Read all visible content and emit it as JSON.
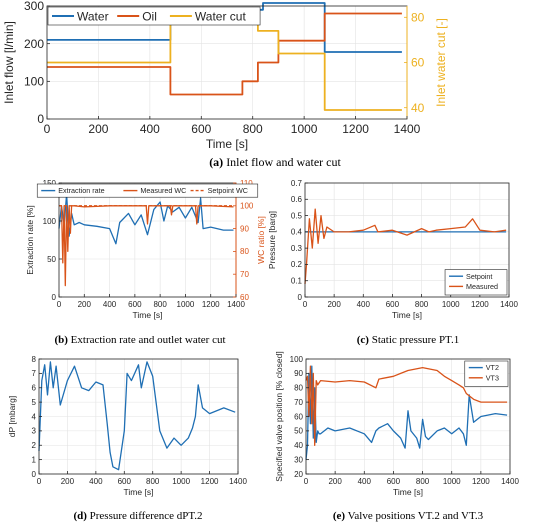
{
  "colors": {
    "blue": "#1f6fb4",
    "orange": "#d95319",
    "yellow": "#edb120"
  },
  "captions": [
    {
      "label": "(a)",
      "text": "Inlet flow and water cut"
    },
    {
      "label": "(b)",
      "text": "Extraction rate and outlet water cut"
    },
    {
      "label": "(c)",
      "text": "Static pressure PT.1"
    },
    {
      "label": "(d)",
      "text": "Pressure difference dPT.2"
    },
    {
      "label": "(e)",
      "text": "Valve positions VT.2 and VT.3"
    }
  ],
  "chart_data": [
    {
      "id": "a",
      "type": "line",
      "xlabel": "Time [s]",
      "ylabel": "Inlet flow [l/min]",
      "ylabel_right": "Inlet water cut [-]",
      "xlim": [
        0,
        1400
      ],
      "ylim": [
        0,
        300
      ],
      "ylim_right": [
        35,
        85
      ],
      "xticks": [
        0,
        200,
        400,
        600,
        800,
        1000,
        1200,
        1400
      ],
      "yticks": [
        0,
        100,
        200,
        300
      ],
      "yticks_right": [
        40,
        60,
        80
      ],
      "grid": true,
      "legend": "top-left",
      "series": [
        {
          "name": "Water",
          "color": "#1f6fb4",
          "axis": "left",
          "x": [
            0,
            480,
            480,
            840,
            840,
            1080,
            1080,
            1380
          ],
          "y": [
            210,
            210,
            290,
            290,
            308,
            308,
            178,
            178
          ]
        },
        {
          "name": "Oil",
          "color": "#d95319",
          "axis": "left",
          "x": [
            0,
            480,
            480,
            760,
            760,
            820,
            820,
            900,
            900,
            1080,
            1080,
            1380
          ],
          "y": [
            138,
            138,
            65,
            65,
            100,
            100,
            150,
            150,
            208,
            208,
            280,
            280
          ]
        },
        {
          "name": "Water cut",
          "color": "#edb120",
          "axis": "right",
          "x": [
            0,
            480,
            480,
            760,
            760,
            820,
            820,
            900,
            900,
            1080,
            1080,
            1380
          ],
          "y": [
            60,
            60,
            81,
            81,
            78,
            78,
            74,
            74,
            64,
            64,
            39,
            39
          ]
        }
      ]
    },
    {
      "id": "b",
      "type": "line",
      "xlabel": "Time [s]",
      "ylabel": "Extraction rate [%]",
      "ylabel_right": "WC ratio [%]",
      "xlim": [
        0,
        1400
      ],
      "ylim": [
        0,
        150
      ],
      "ylim_right": [
        60,
        110
      ],
      "xticks": [
        0,
        200,
        400,
        600,
        800,
        1000,
        1200,
        1400
      ],
      "yticks": [
        0,
        50,
        100,
        150
      ],
      "yticks_right": [
        60,
        70,
        80,
        90,
        100,
        110
      ],
      "grid": true,
      "legend": "top",
      "series": [
        {
          "name": "Extraction rate",
          "color": "#1f6fb4",
          "axis": "left",
          "x": [
            0,
            20,
            40,
            60,
            80,
            100,
            120,
            160,
            200,
            300,
            400,
            450,
            480,
            550,
            600,
            650,
            700,
            750,
            800,
            830,
            860,
            900,
            950,
            1000,
            1050,
            1100,
            1120,
            1140,
            1200,
            1300,
            1380
          ],
          "y": [
            90,
            120,
            95,
            135,
            80,
            110,
            95,
            98,
            95,
            93,
            90,
            70,
            98,
            110,
            95,
            108,
            82,
            115,
            125,
            100,
            120,
            112,
            118,
            104,
            118,
            98,
            130,
            90,
            92,
            88,
            88
          ]
        },
        {
          "name": "Measured WC",
          "color": "#d95319",
          "axis": "right",
          "x": [
            0,
            20,
            30,
            40,
            50,
            60,
            70,
            80,
            90,
            100,
            120,
            200,
            400,
            690,
            700,
            710,
            800,
            880,
            890,
            900,
            1000,
            1080,
            1090,
            1100,
            1200,
            1380
          ],
          "y": [
            100,
            100,
            75,
            100,
            65,
            100,
            80,
            100,
            88,
            100,
            100,
            99.5,
            100,
            100,
            92,
            100,
            100,
            100,
            96,
            100,
            100,
            100,
            92,
            100,
            100,
            99.5
          ]
        },
        {
          "name": "Setpoint WC",
          "color": "#d95319",
          "axis": "right",
          "dashed": true,
          "x": [
            0,
            1380
          ],
          "y": [
            100,
            100
          ]
        }
      ]
    },
    {
      "id": "c",
      "type": "line",
      "xlabel": "Time [s]",
      "ylabel": "Pressure [barg]",
      "xlim": [
        0,
        1400
      ],
      "ylim": [
        0,
        0.7
      ],
      "xticks": [
        0,
        200,
        400,
        600,
        800,
        1000,
        1200,
        1400
      ],
      "yticks": [
        0,
        0.1,
        0.2,
        0.3,
        0.4,
        0.5,
        0.6,
        0.7
      ],
      "grid": true,
      "legend": "bottom-right",
      "series": [
        {
          "name": "Setpoint",
          "color": "#1f6fb4",
          "x": [
            0,
            1380
          ],
          "y": [
            0.4,
            0.4
          ]
        },
        {
          "name": "Measured",
          "color": "#d95319",
          "x": [
            0,
            10,
            30,
            50,
            70,
            90,
            110,
            130,
            150,
            200,
            300,
            400,
            480,
            500,
            600,
            700,
            800,
            850,
            900,
            1000,
            1100,
            1150,
            1200,
            1300,
            1380
          ],
          "y": [
            0.08,
            0.2,
            0.48,
            0.3,
            0.54,
            0.33,
            0.5,
            0.36,
            0.43,
            0.4,
            0.4,
            0.41,
            0.44,
            0.4,
            0.41,
            0.38,
            0.42,
            0.4,
            0.41,
            0.42,
            0.43,
            0.48,
            0.41,
            0.4,
            0.41
          ]
        }
      ]
    },
    {
      "id": "d",
      "type": "line",
      "xlabel": "Time [s]",
      "ylabel": "dP [mbarg]",
      "xlim": [
        0,
        1400
      ],
      "ylim": [
        0,
        8
      ],
      "xticks": [
        0,
        200,
        400,
        600,
        800,
        1000,
        1200,
        1400
      ],
      "yticks": [
        0,
        1,
        2,
        3,
        4,
        5,
        6,
        7,
        8
      ],
      "grid": true,
      "series": [
        {
          "name": "",
          "color": "#1f6fb4",
          "x": [
            0,
            20,
            40,
            60,
            80,
            100,
            120,
            150,
            200,
            250,
            300,
            350,
            400,
            450,
            480,
            500,
            520,
            560,
            600,
            620,
            650,
            700,
            720,
            760,
            800,
            850,
            900,
            950,
            1000,
            1050,
            1080,
            1100,
            1120,
            1150,
            1200,
            1300,
            1380
          ],
          "y": [
            1.6,
            6.5,
            7.6,
            5.5,
            7.8,
            6.0,
            7.5,
            4.8,
            6.5,
            7.5,
            6.0,
            5.8,
            6.4,
            6.2,
            3.5,
            1.5,
            0.5,
            0.3,
            3.0,
            7.0,
            6.5,
            7.6,
            6.0,
            7.8,
            6.8,
            3.0,
            1.8,
            2.5,
            2.0,
            2.5,
            3.2,
            4.0,
            6.2,
            4.6,
            4.2,
            4.6,
            4.3
          ]
        }
      ]
    },
    {
      "id": "e",
      "type": "line",
      "xlabel": "Time [s]",
      "ylabel": "Specified valve position [% closed]",
      "xlim": [
        0,
        1400
      ],
      "ylim": [
        20,
        100
      ],
      "xticks": [
        0,
        200,
        400,
        600,
        800,
        1000,
        1200,
        1400
      ],
      "yticks": [
        20,
        30,
        40,
        50,
        60,
        70,
        80,
        90,
        100
      ],
      "grid": true,
      "legend": "top-right",
      "series": [
        {
          "name": "VT2",
          "color": "#1f6fb4",
          "x": [
            0,
            10,
            20,
            30,
            40,
            50,
            60,
            70,
            80,
            90,
            100,
            150,
            200,
            300,
            400,
            450,
            480,
            500,
            560,
            600,
            650,
            680,
            700,
            720,
            760,
            780,
            800,
            820,
            840,
            900,
            950,
            1000,
            1050,
            1080,
            1100,
            1120,
            1150,
            1200,
            1300,
            1380
          ],
          "y": [
            30,
            40,
            90,
            55,
            95,
            45,
            80,
            42,
            50,
            48,
            48,
            52,
            50,
            52,
            48,
            42,
            50,
            52,
            55,
            50,
            45,
            38,
            64,
            50,
            45,
            38,
            58,
            46,
            44,
            50,
            52,
            48,
            52,
            48,
            40,
            75,
            56,
            60,
            62,
            61
          ]
        },
        {
          "name": "VT3",
          "color": "#d95319",
          "x": [
            0,
            10,
            20,
            30,
            40,
            50,
            60,
            70,
            80,
            100,
            200,
            300,
            400,
            480,
            500,
            600,
            650,
            700,
            800,
            900,
            950,
            1000,
            1050,
            1080,
            1100,
            1150,
            1200,
            1300,
            1380
          ],
          "y": [
            85,
            88,
            60,
            95,
            55,
            90,
            40,
            85,
            82,
            85,
            84,
            85,
            84,
            80,
            86,
            88,
            90,
            92,
            94,
            92,
            88,
            85,
            82,
            80,
            76,
            72,
            70,
            70,
            70
          ]
        }
      ]
    }
  ]
}
